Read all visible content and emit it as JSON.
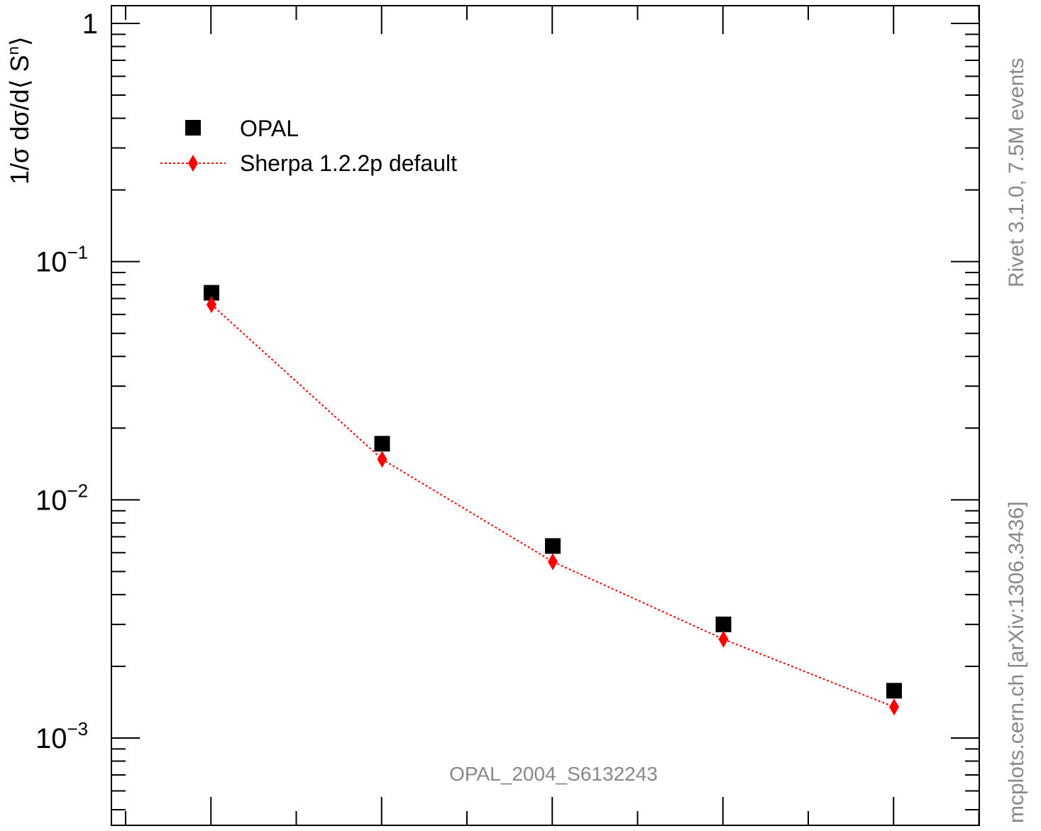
{
  "chart_data": {
    "type": "scatter",
    "ylabel": "1/σ dσ/d⟨ S",
    "ylabel_sup": "n",
    "ylabel_close": "⟩",
    "yscale": "log",
    "ylim": [
      0.0005,
      1.2
    ],
    "x": [
      1,
      2,
      3,
      4,
      5
    ],
    "xlim": [
      0.5,
      5.5
    ],
    "yticks": [
      {
        "value": 1,
        "base": "1",
        "exp": ""
      },
      {
        "value": 0.1,
        "base": "10",
        "exp": "−1"
      },
      {
        "value": 0.01,
        "base": "10",
        "exp": "−2"
      },
      {
        "value": 0.001,
        "base": "10",
        "exp": "−3"
      }
    ],
    "series": [
      {
        "name": "OPAL",
        "marker": "square",
        "color": "#000000",
        "values": [
          0.074,
          0.0172,
          0.0064,
          0.003,
          0.00158
        ]
      },
      {
        "name": "Sherpa 1.2.2p default",
        "marker": "diamond",
        "color": "#ff0000",
        "line": "dotted",
        "values": [
          0.066,
          0.0148,
          0.0055,
          0.0026,
          0.00135
        ]
      }
    ],
    "legend_placement": "top-left",
    "grid": false,
    "annotation": "OPAL_2004_S6132243"
  },
  "side_labels": {
    "rivet": "Rivet 3.1.0,  7.5M events",
    "mcplots": "mcplots.cern.ch [arXiv:1306.3436]"
  }
}
